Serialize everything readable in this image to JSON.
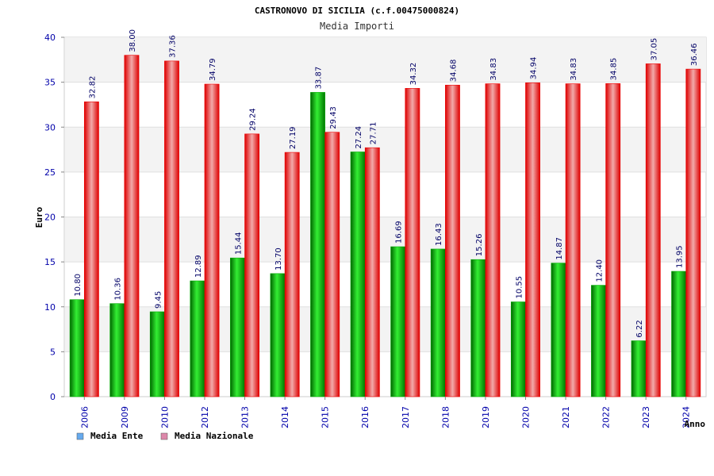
{
  "chart_data": {
    "type": "bar",
    "title": "CASTRONOVO DI SICILIA (c.f.00475000824)",
    "subtitle": "Media Importi",
    "xlabel": "Anno",
    "ylabel": "Euro",
    "ylim": [
      0,
      40
    ],
    "yticks": [
      0,
      5,
      10,
      15,
      20,
      25,
      30,
      35,
      40
    ],
    "grid": true,
    "legend_position": "bottom-left",
    "categories": [
      "2006",
      "2009",
      "2010",
      "2012",
      "2013",
      "2014",
      "2015",
      "2016",
      "2017",
      "2018",
      "2019",
      "2020",
      "2021",
      "2022",
      "2023",
      "2024"
    ],
    "series": [
      {
        "name": "Media Ente",
        "color": "#00aa00",
        "legend_color": "#66aaee",
        "values": [
          10.8,
          10.36,
          9.45,
          12.89,
          15.44,
          13.7,
          33.87,
          27.24,
          16.69,
          16.43,
          15.26,
          10.55,
          14.87,
          12.4,
          6.22,
          13.95
        ],
        "labels": [
          "10.80",
          "10.36",
          "9.45",
          "12.89",
          "15.44",
          "13.70",
          "33.87",
          "27.24",
          "16.69",
          "16.43",
          "15.26",
          "10.55",
          "14.87",
          "12.40",
          "6.22",
          "13.95"
        ]
      },
      {
        "name": "Media Nazionale",
        "color": "#ee0000",
        "legend_color": "#dd88aa",
        "values": [
          32.82,
          38.0,
          37.36,
          34.79,
          29.24,
          27.19,
          29.43,
          27.71,
          34.32,
          34.68,
          34.83,
          34.94,
          34.83,
          34.85,
          37.05,
          36.46
        ],
        "labels": [
          "32.82",
          "38.00",
          "37.36",
          "34.79",
          "29.24",
          "27.19",
          "29.43",
          "27.71",
          "34.32",
          "34.68",
          "34.83",
          "34.94",
          "34.83",
          "34.85",
          "37.05",
          "36.46"
        ]
      }
    ]
  }
}
